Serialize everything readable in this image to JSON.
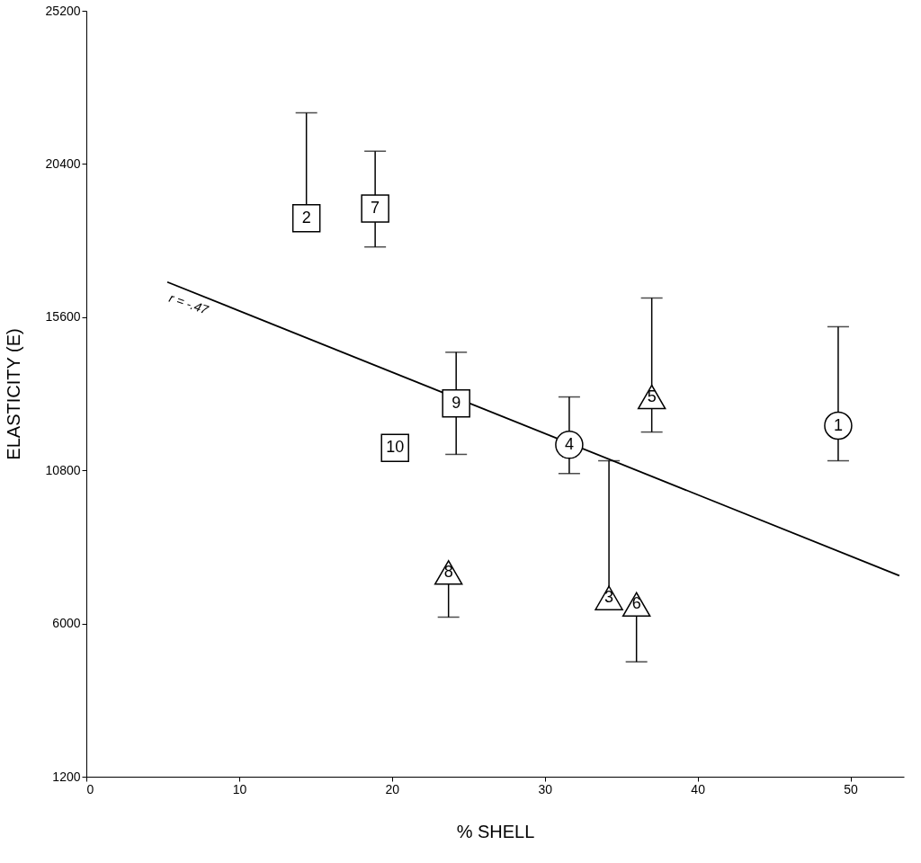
{
  "chart_data": {
    "type": "scatter",
    "xlabel": "% SHELL",
    "ylabel": "ELASTICITY (E)",
    "xlim": [
      0,
      53.5
    ],
    "ylim": [
      1200,
      25200
    ],
    "xticks": [
      0,
      10,
      20,
      30,
      40,
      50
    ],
    "yticks": [
      1200,
      6000,
      10800,
      15600,
      20400,
      25200
    ],
    "grid": false,
    "legend": false,
    "series": [
      {
        "marker": "square",
        "color": "#000000",
        "x": [
          14.4,
          18.9,
          24.2,
          20.2
        ],
        "values": [
          18700,
          19000,
          12900,
          11500
        ],
        "errors": [
          [
            18700,
            22000
          ],
          [
            17800,
            20800
          ],
          [
            11300,
            14500
          ],
          null
        ]
      },
      {
        "marker": "circle",
        "color": "#000000",
        "x": [
          31.6,
          49.2
        ],
        "values": [
          11600,
          12200
        ],
        "errors": [
          [
            10700,
            13100
          ],
          [
            11100,
            15300
          ]
        ]
      },
      {
        "marker": "triangle",
        "color": "#000000",
        "x": [
          37.0,
          23.7,
          34.2,
          36.0
        ],
        "values": [
          13100,
          7600,
          6800,
          6600
        ],
        "errors": [
          [
            12000,
            16200
          ],
          [
            6200,
            7600
          ],
          [
            6800,
            11100
          ],
          [
            4800,
            6600
          ]
        ]
      },
      {
        "type": "line",
        "color": "#000000",
        "x": [
          5.3,
          53.2
        ],
        "values": [
          16700,
          7500
        ]
      }
    ],
    "annotations": [
      {
        "text": "2",
        "x": 14.4,
        "y": 18700
      },
      {
        "text": "7",
        "x": 18.9,
        "y": 19000
      },
      {
        "text": "9",
        "x": 24.2,
        "y": 12900
      },
      {
        "text": "10",
        "x": 20.2,
        "y": 11500
      },
      {
        "text": "4",
        "x": 31.6,
        "y": 11600
      },
      {
        "text": "1",
        "x": 49.2,
        "y": 12200
      },
      {
        "text": "5",
        "x": 37.0,
        "y": 13100
      },
      {
        "text": "8",
        "x": 23.7,
        "y": 7600
      },
      {
        "text": "3",
        "x": 34.2,
        "y": 6800
      },
      {
        "text": "6",
        "x": 36.0,
        "y": 6600
      },
      "r = -.47"
    ]
  }
}
